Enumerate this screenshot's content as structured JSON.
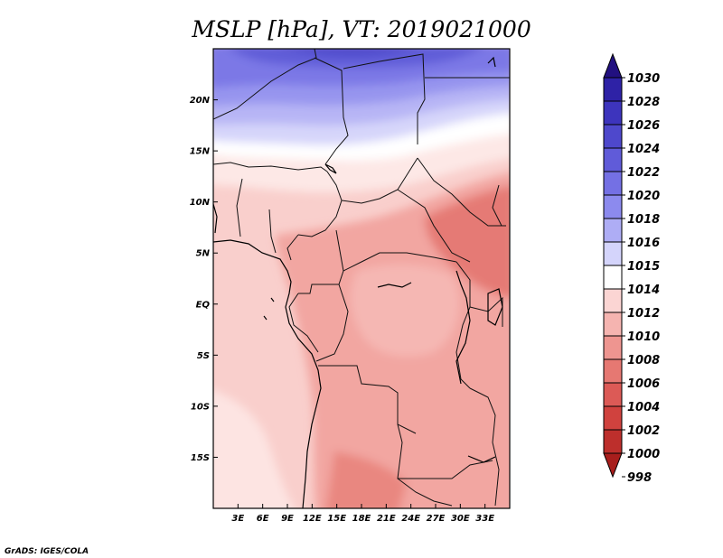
{
  "title": "MSLP [hPa], VT: 2019021000",
  "footer": "GrADS: IGES/COLA",
  "map": {
    "lon_range": [
      0,
      36
    ],
    "lat_range": [
      -20,
      25
    ],
    "x_ticks": [
      "3E",
      "6E",
      "9E",
      "12E",
      "15E",
      "18E",
      "21E",
      "24E",
      "27E",
      "30E",
      "33E"
    ],
    "y_ticks": [
      "20N",
      "15N",
      "10N",
      "5N",
      "EQ",
      "5S",
      "10S",
      "15S"
    ]
  },
  "colorbar": {
    "levels": [
      "1030",
      "1028",
      "1026",
      "1024",
      "1022",
      "1020",
      "1018",
      "1016",
      "1015",
      "1014",
      "1012",
      "1010",
      "1008",
      "1006",
      "1004",
      "1002",
      "1000",
      "998"
    ],
    "colors": [
      "#221080",
      "#2e22a6",
      "#3d34bd",
      "#4e48cc",
      "#605bd9",
      "#7470e4",
      "#8c8aee",
      "#aeadf5",
      "#d4d4fb",
      "#ffffff",
      "#fbd5d3",
      "#f5b4b0",
      "#ee9590",
      "#e67872",
      "#dc5a56",
      "#d0423e",
      "#bd2f2c",
      "#a81e1c"
    ]
  }
}
